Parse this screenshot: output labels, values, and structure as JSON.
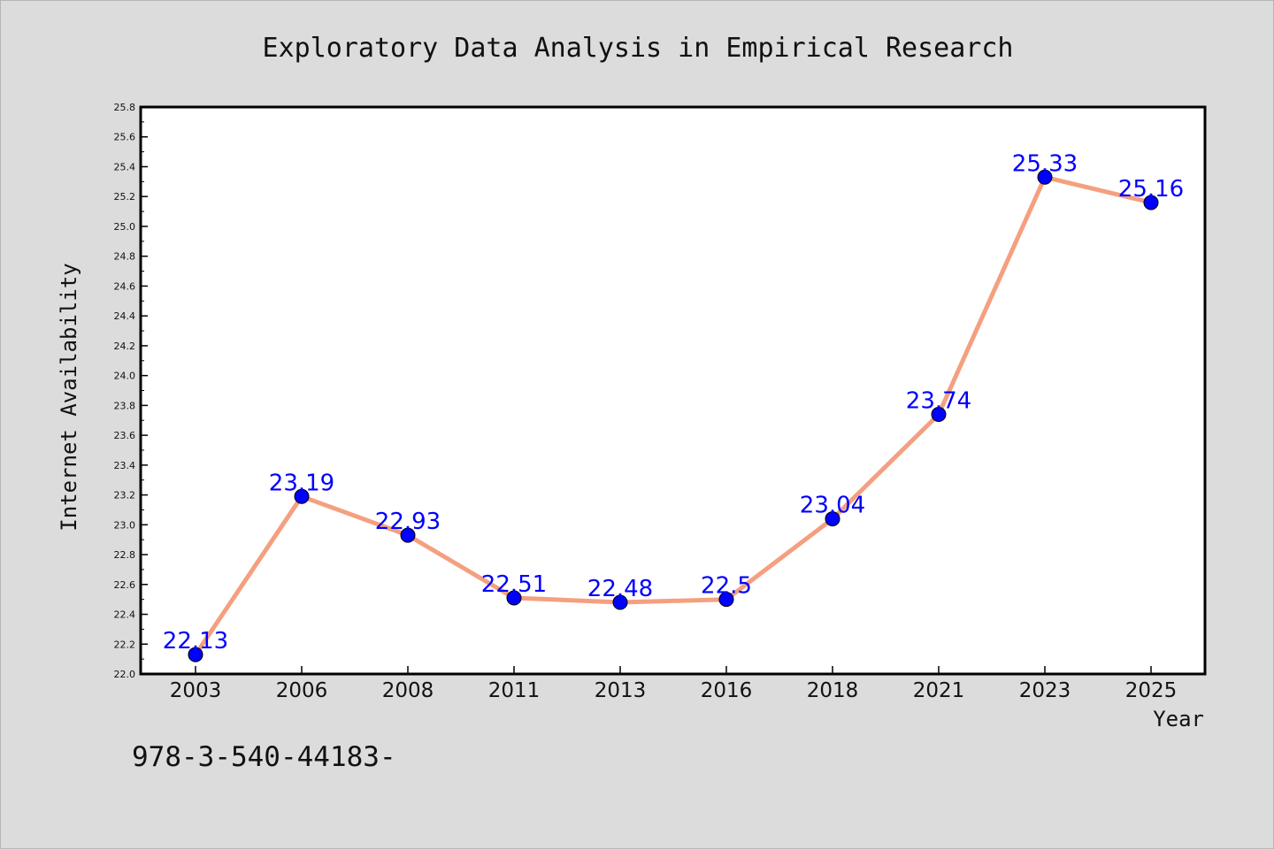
{
  "chart_data": {
    "type": "line",
    "title": "Exploratory Data Analysis in Empirical Research",
    "xlabel": "Year",
    "ylabel": "Internet Availability",
    "categories": [
      "2003",
      "2006",
      "2008",
      "2011",
      "2013",
      "2016",
      "2018",
      "2021",
      "2023",
      "2025"
    ],
    "series": [
      {
        "values": [
          22.13,
          23.19,
          22.93,
          22.51,
          22.48,
          22.5,
          23.04,
          23.74,
          25.33,
          25.16
        ],
        "data_labels": [
          "22.13",
          "23.19",
          "22.93",
          "22.51",
          "22.48",
          "22.5",
          "23.04",
          "23.74",
          "25.33",
          "25.16"
        ]
      }
    ],
    "ylim": [
      22.0,
      25.8
    ],
    "yticks": [
      "22.0",
      "22.2",
      "22.4",
      "22.6",
      "22.8",
      "23.0",
      "23.2",
      "23.4",
      "23.6",
      "23.8",
      "24.0",
      "24.2",
      "24.4",
      "24.6",
      "24.8",
      "25.0",
      "25.2",
      "25.4",
      "25.6",
      "25.8"
    ],
    "grid": false,
    "legend": "none",
    "colors": {
      "line": "#f4a080",
      "marker": "#0000ff",
      "data_label": "#0000ff",
      "background": "#dcdcdc",
      "plot_background": "#ffffff"
    }
  },
  "footer_text": "978-3-540-44183-"
}
